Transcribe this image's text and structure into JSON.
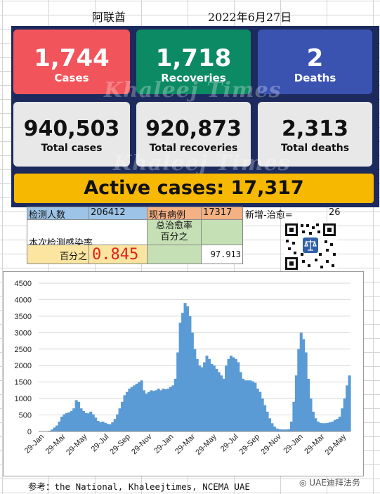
{
  "header": {
    "country": "阿联酋",
    "date": "2022年6月27日"
  },
  "dashboard": {
    "cases_num": "1,744",
    "cases_label": "Cases",
    "recoveries_num": "1,718",
    "recoveries_label": "Recoveries",
    "deaths_num": "2",
    "deaths_label": "Deaths",
    "total_cases_num": "940,503",
    "total_cases_label": "Total cases",
    "total_recoveries_num": "920,873",
    "total_recoveries_label": "Total recoveries",
    "total_deaths_num": "2,313",
    "total_deaths_label": "Total deaths",
    "active_text": "Active cases: 17,317",
    "watermark": "Khaleej Times"
  },
  "stats": {
    "tested_label": "检测人数",
    "tested_value": "206412",
    "existing_label": "现有病例",
    "existing_value": "17317",
    "net_label": "新增-治愈=",
    "net_value": "26",
    "infection_rate_label": "本次检测感染率",
    "percent_label": "百分之",
    "infection_rate_value": "0.845",
    "recovery_label_1": "总治愈率",
    "recovery_label_2": "百分之",
    "recovery_value": "97.913"
  },
  "colors": {
    "series": "#5b9bd5",
    "tested_bg": "#9dc3e6",
    "existing_bg": "#f4b183",
    "rate_bg": "#fbe5a0",
    "recovery_bg": "#c5e0b4",
    "rate_text": "#e0201b"
  },
  "chart_data": {
    "type": "area",
    "ylim": [
      0,
      4500
    ],
    "yticks": [
      0,
      500,
      1000,
      1500,
      2000,
      2500,
      3000,
      3500,
      4000,
      4500
    ],
    "xtick_labels": [
      "29-Jan",
      "29-Mar",
      "29-May",
      "29-Jul",
      "29-Sep",
      "29-Nov",
      "29-Jan",
      "29-Mar",
      "29-May",
      "29-Jul",
      "29-Sep",
      "29-Nov",
      "29-Jan",
      "29-Mar",
      "29-May"
    ],
    "series": [
      {
        "values": [
          0,
          0,
          0,
          5,
          20,
          60,
          120,
          180,
          300,
          450,
          520,
          560,
          580,
          620,
          700,
          950,
          900,
          700,
          620,
          560,
          550,
          600,
          520,
          420,
          320,
          280,
          300,
          260,
          230,
          220,
          280,
          380,
          520,
          700,
          900,
          1100,
          1200,
          1300,
          1350,
          1400,
          1450,
          1500,
          1550,
          1250,
          1150,
          1200,
          1250,
          1230,
          1250,
          1300,
          1250,
          1300,
          1280,
          1300,
          1350,
          1400,
          1600,
          2400,
          3300,
          3600,
          3900,
          3800,
          3500,
          3000,
          2500,
          2200,
          2000,
          1950,
          2100,
          2300,
          2200,
          2050,
          2000,
          1900,
          1800,
          1700,
          1600,
          2000,
          2200,
          2300,
          2250,
          2200,
          2100,
          1800,
          1600,
          1550,
          1550,
          1550,
          1520,
          1480,
          1300,
          1200,
          1000,
          800,
          600,
          400,
          250,
          150,
          90,
          70,
          60,
          60,
          60,
          70,
          300,
          900,
          1700,
          2500,
          3000,
          2800,
          2400,
          1600,
          1000,
          600,
          400,
          300,
          260,
          250,
          250,
          260,
          280,
          300,
          350,
          380,
          450,
          700,
          1000,
          1400,
          1700
        ]
      }
    ]
  }
}
